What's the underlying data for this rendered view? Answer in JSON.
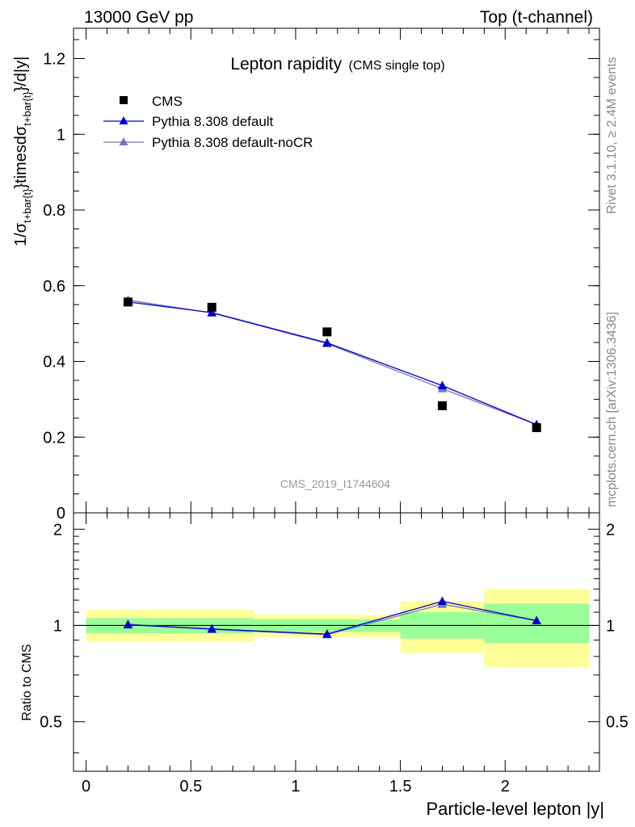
{
  "header": {
    "left": "13000 GeV pp",
    "right": "Top (t-channel)"
  },
  "side_labels": {
    "rivet": "Rivet 3.1.10, ≥ 2.4M events",
    "mcplots": "mcplots.cern.ch [arXiv:1306.3436]"
  },
  "title": {
    "main": "Lepton rapidity",
    "sub": "(CMS single top)"
  },
  "watermark": "CMS_2019_I1744604",
  "colors": {
    "data": "#000000",
    "pythia_default": "#0000cc",
    "pythia_nocr": "#7777bb",
    "band_inner": "#99ff99",
    "band_outer": "#ffff99"
  },
  "chart_data": [
    {
      "type": "scatter",
      "panel": "main",
      "title": "Lepton rapidity (CMS single top)",
      "xlabel": "Particle-level lepton |y|",
      "ylabel": "1/σ_{t+bar{t}}timesdσ_{t+bar{t}}/d|y|",
      "ylabel_parts": [
        "1/σ",
        "t+bar{t}",
        "}timesdσ",
        "t+bar{t}",
        "}/d|y|"
      ],
      "xlim": [
        -0.06,
        2.45
      ],
      "ylim": [
        0,
        1.28
      ],
      "yticks": [
        0,
        0.2,
        0.4,
        0.6,
        0.8,
        1,
        1.2
      ],
      "ytick_labels": [
        "0",
        "0.2",
        "0.4",
        "0.6",
        "0.8",
        "1",
        "1.2"
      ],
      "legend_position": "top-left",
      "series": [
        {
          "name": "CMS",
          "marker": "square",
          "x": [
            0.2,
            0.6,
            1.15,
            1.7,
            2.15
          ],
          "y": [
            0.557,
            0.543,
            0.478,
            0.283,
            0.225
          ]
        },
        {
          "name": "Pythia 8.308 default",
          "marker": "triangle",
          "x": [
            0.2,
            0.6,
            1.15,
            1.7,
            2.15
          ],
          "y": [
            0.557,
            0.529,
            0.449,
            0.336,
            0.233
          ]
        },
        {
          "name": "Pythia 8.308 default-noCR",
          "marker": "triangle",
          "x": [
            0.2,
            0.6,
            1.15,
            1.7,
            2.15
          ],
          "y": [
            0.562,
            0.528,
            0.447,
            0.328,
            0.233
          ]
        }
      ]
    },
    {
      "type": "line",
      "panel": "ratio",
      "ylabel": "Ratio to CMS",
      "xlabel": "Particle-level lepton |y|",
      "xlim": [
        -0.06,
        2.45
      ],
      "ylim": [
        0.35,
        2.25
      ],
      "log_y": true,
      "xticks": [
        0,
        0.5,
        1,
        1.5,
        2
      ],
      "xtick_labels": [
        "0",
        "0.5",
        "1",
        "1.5",
        "2"
      ],
      "yticks": [
        0.5,
        1,
        2
      ],
      "ytick_labels": [
        "0.5",
        "1",
        "2"
      ],
      "bins": [
        [
          0,
          0.4
        ],
        [
          0.4,
          0.8
        ],
        [
          0.8,
          1.5
        ],
        [
          1.5,
          1.9
        ],
        [
          1.9,
          2.4
        ]
      ],
      "band_inner": [
        [
          0.945,
          1.055
        ],
        [
          0.945,
          1.055
        ],
        [
          0.955,
          1.045
        ],
        [
          0.91,
          1.1
        ],
        [
          0.88,
          1.17
        ]
      ],
      "band_outer": [
        [
          0.89,
          1.12
        ],
        [
          0.89,
          1.12
        ],
        [
          0.92,
          1.08
        ],
        [
          0.82,
          1.19
        ],
        [
          0.74,
          1.3
        ]
      ],
      "series": [
        {
          "name": "Pythia 8.308 default",
          "x": [
            0.2,
            0.6,
            1.15,
            1.7,
            2.15
          ],
          "y": [
            1.005,
            0.975,
            0.94,
            1.19,
            1.035
          ]
        },
        {
          "name": "Pythia 8.308 default-noCR",
          "x": [
            0.2,
            0.6,
            1.15,
            1.7,
            2.15
          ],
          "y": [
            1.01,
            0.972,
            0.936,
            1.165,
            1.035
          ]
        }
      ]
    }
  ]
}
